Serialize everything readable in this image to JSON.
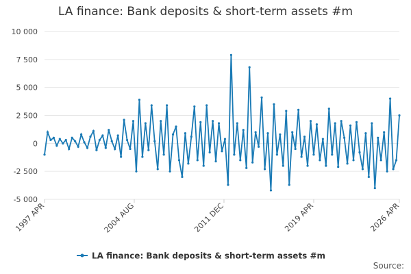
{
  "chart_data": {
    "type": "line",
    "title": "LA finance: Bank deposits & short-term assets #m",
    "source": "Source:",
    "x": [
      1997.25,
      1997.5,
      1997.75,
      1998,
      1998.25,
      1998.5,
      1998.75,
      1999,
      1999.25,
      1999.5,
      1999.75,
      2000,
      2000.25,
      2000.5,
      2000.75,
      2001,
      2001.25,
      2001.5,
      2001.75,
      2002,
      2002.25,
      2002.5,
      2002.75,
      2003,
      2003.25,
      2003.5,
      2003.75,
      2004,
      2004.25,
      2004.5,
      2004.75,
      2005,
      2005.25,
      2005.5,
      2005.75,
      2006,
      2006.25,
      2006.5,
      2006.75,
      2007,
      2007.25,
      2007.5,
      2007.75,
      2008,
      2008.25,
      2008.5,
      2008.75,
      2009,
      2009.25,
      2009.5,
      2009.75,
      2010,
      2010.25,
      2010.5,
      2010.75,
      2011,
      2011.25,
      2011.5,
      2011.75,
      2012,
      2012.25,
      2012.5,
      2012.75,
      2013,
      2013.25,
      2013.5,
      2013.75,
      2014,
      2014.25,
      2014.5,
      2014.75,
      2015,
      2015.25,
      2015.5,
      2015.75,
      2016,
      2016.25,
      2016.5,
      2016.75,
      2017,
      2017.25,
      2017.5,
      2017.75,
      2018,
      2018.25,
      2018.5,
      2018.75,
      2019,
      2019.25,
      2019.5,
      2019.75,
      2020,
      2020.25,
      2020.5,
      2020.75,
      2021,
      2021.25,
      2021.5,
      2021.75,
      2022,
      2022.25,
      2022.5,
      2022.75,
      2023,
      2023.25,
      2023.5,
      2023.75,
      2024,
      2024.25,
      2024.5,
      2024.75,
      2025,
      2025.25,
      2025.5,
      2025.75,
      2026,
      2026.25
    ],
    "series": [
      {
        "name": "LA finance: Bank deposits & short-term assets #m",
        "color": "#1a7ab5",
        "values": [
          -1000,
          1000,
          300,
          500,
          -200,
          400,
          0,
          300,
          -500,
          500,
          200,
          -300,
          800,
          100,
          -400,
          600,
          1100,
          -600,
          300,
          700,
          -400,
          1200,
          200,
          -500,
          700,
          -1200,
          2100,
          300,
          -500,
          2000,
          -2500,
          3900,
          -1200,
          1800,
          -600,
          3400,
          200,
          -2300,
          2000,
          -1000,
          3400,
          -2500,
          800,
          1500,
          -1500,
          -3000,
          900,
          -1800,
          600,
          3300,
          -1500,
          1900,
          -2000,
          3400,
          -800,
          2000,
          -1600,
          1800,
          -700,
          400,
          -3700,
          7900,
          -1000,
          1800,
          -1500,
          1200,
          -2200,
          6800,
          -1700,
          1000,
          -300,
          4100,
          -2300,
          900,
          -4200,
          3500,
          -1000,
          800,
          -2000,
          2900,
          -3700,
          1000,
          -500,
          3000,
          -1200,
          600,
          -2000,
          2000,
          -1000,
          1700,
          -1500,
          400,
          -2000,
          3100,
          -1000,
          1800,
          -2100,
          2000,
          500,
          -1800,
          1600,
          -1500,
          1900,
          -800,
          -2300,
          900,
          -3000,
          1800,
          -4000,
          500,
          -1500,
          1000,
          -2500,
          4000,
          -2300,
          -1500,
          2500
        ]
      }
    ],
    "xlim": [
      1997.25,
      2026.25
    ],
    "xticks": [
      {
        "value": 1997.25,
        "label": "1997 APR"
      },
      {
        "value": 2004.5833,
        "label": "2004 AUG"
      },
      {
        "value": 2011.9167,
        "label": "2011 DEC"
      },
      {
        "value": 2019.25,
        "label": "2019 APR"
      },
      {
        "value": 2026.25,
        "label": "2026 APR"
      }
    ],
    "ylim": [
      -5000,
      10000
    ],
    "yticks": [
      {
        "value": 10000,
        "label": "10 000"
      },
      {
        "value": 7500,
        "label": "7 500"
      },
      {
        "value": 5000,
        "label": "5 000"
      },
      {
        "value": 2500,
        "label": "2 500"
      },
      0,
      {
        "value": -2500,
        "label": "-2 500"
      },
      {
        "value": -5000,
        "label": "-5 000"
      }
    ],
    "grid": true
  }
}
